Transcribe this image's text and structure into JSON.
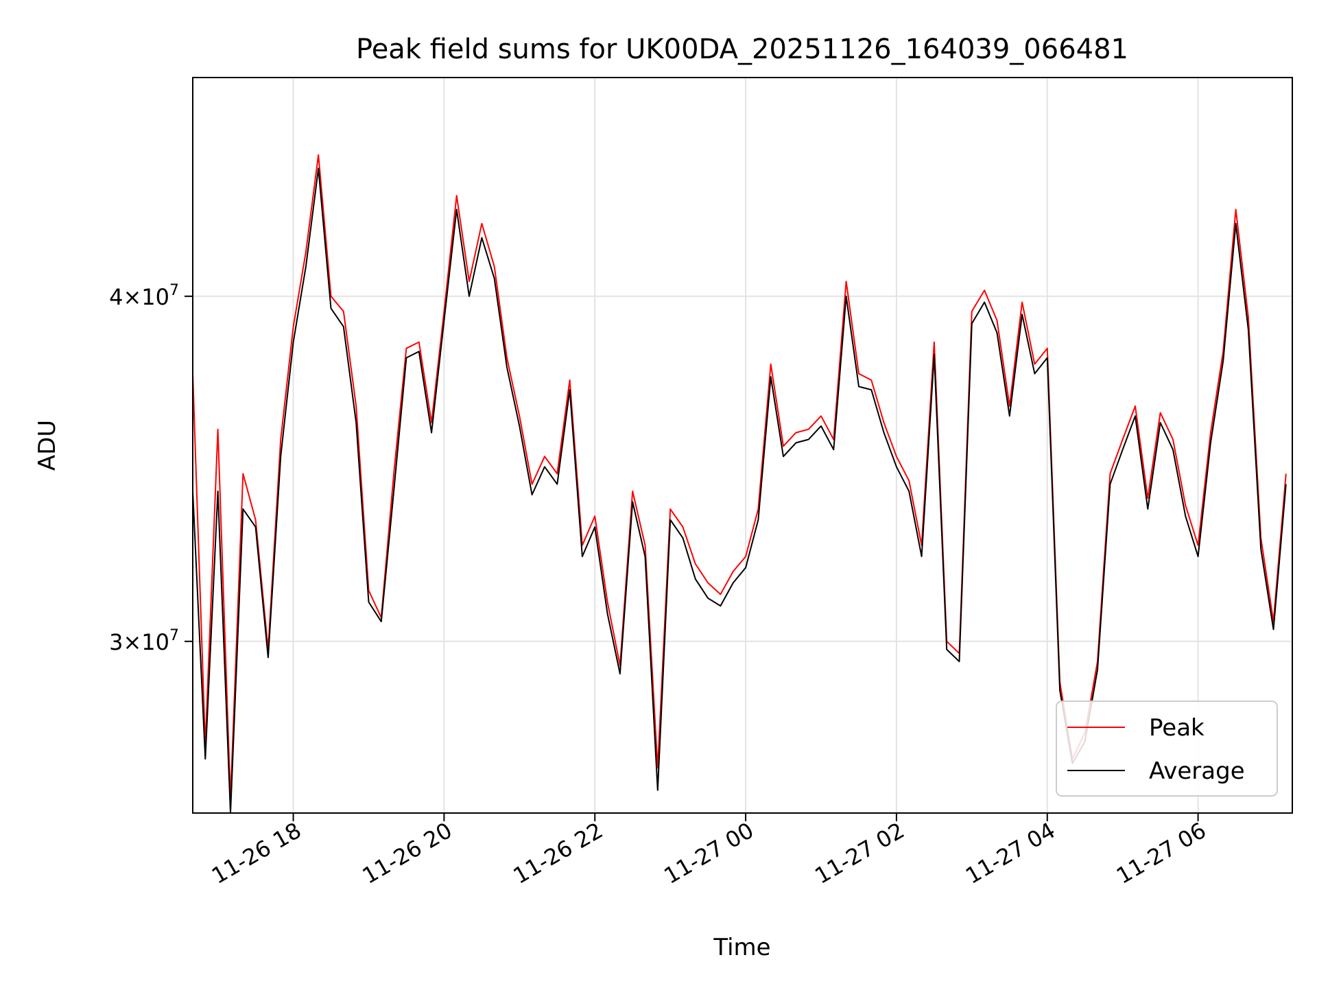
{
  "chart_data": {
    "type": "line",
    "title": "Peak field sums for UK00DA_20251126_164039_066481",
    "xlabel": "Time",
    "ylabel": "ADU",
    "yscale": "log",
    "xlim": [
      "2025-11-26 16:40",
      "2025-11-27 07:15"
    ],
    "ylim": [
      26000000,
      48000000
    ],
    "grid": true,
    "legend_position": "lower-right",
    "x_ticks": [
      {
        "value": "2025-11-26 18:00",
        "label": "11-26 18"
      },
      {
        "value": "2025-11-26 20:00",
        "label": "11-26 20"
      },
      {
        "value": "2025-11-26 22:00",
        "label": "11-26 22"
      },
      {
        "value": "2025-11-27 00:00",
        "label": "11-27 00"
      },
      {
        "value": "2025-11-27 02:00",
        "label": "11-27 02"
      },
      {
        "value": "2025-11-27 04:00",
        "label": "11-27 04"
      },
      {
        "value": "2025-11-27 06:00",
        "label": "11-27 06"
      }
    ],
    "y_ticks": [
      {
        "value": 30000000,
        "mantissa": "3",
        "exponent": "7"
      },
      {
        "value": 40000000,
        "mantissa": "4",
        "exponent": "7"
      }
    ],
    "tick_times_label": "×10",
    "series": [
      {
        "name": "Peak",
        "color": "#ff0000",
        "x": [
          "2025-11-26 16:40",
          "2025-11-26 16:50",
          "2025-11-26 17:00",
          "2025-11-26 17:10",
          "2025-11-26 17:20",
          "2025-11-26 17:30",
          "2025-11-26 17:40",
          "2025-11-26 17:50",
          "2025-11-26 18:00",
          "2025-11-26 18:10",
          "2025-11-26 18:20",
          "2025-11-26 18:30",
          "2025-11-26 18:40",
          "2025-11-26 18:50",
          "2025-11-26 19:00",
          "2025-11-26 19:10",
          "2025-11-26 19:20",
          "2025-11-26 19:30",
          "2025-11-26 19:40",
          "2025-11-26 19:50",
          "2025-11-26 20:00",
          "2025-11-26 20:10",
          "2025-11-26 20:20",
          "2025-11-26 20:30",
          "2025-11-26 20:40",
          "2025-11-26 20:50",
          "2025-11-26 21:00",
          "2025-11-26 21:10",
          "2025-11-26 21:20",
          "2025-11-26 21:30",
          "2025-11-26 21:40",
          "2025-11-26 21:50",
          "2025-11-26 22:00",
          "2025-11-26 22:10",
          "2025-11-26 22:20",
          "2025-11-26 22:30",
          "2025-11-26 22:40",
          "2025-11-26 22:50",
          "2025-11-26 23:00",
          "2025-11-26 23:10",
          "2025-11-26 23:20",
          "2025-11-26 23:30",
          "2025-11-26 23:40",
          "2025-11-26 23:50",
          "2025-11-27 00:00",
          "2025-11-27 00:10",
          "2025-11-27 00:20",
          "2025-11-27 00:30",
          "2025-11-27 00:40",
          "2025-11-27 00:50",
          "2025-11-27 01:00",
          "2025-11-27 01:10",
          "2025-11-27 01:20",
          "2025-11-27 01:30",
          "2025-11-27 01:40",
          "2025-11-27 01:50",
          "2025-11-27 02:00",
          "2025-11-27 02:10",
          "2025-11-27 02:20",
          "2025-11-27 02:30",
          "2025-11-27 02:40",
          "2025-11-27 02:50",
          "2025-11-27 03:00",
          "2025-11-27 03:10",
          "2025-11-27 03:20",
          "2025-11-27 03:30",
          "2025-11-27 03:40",
          "2025-11-27 03:50",
          "2025-11-27 04:00",
          "2025-11-27 04:10",
          "2025-11-27 04:20",
          "2025-11-27 04:30",
          "2025-11-27 04:40",
          "2025-11-27 04:50",
          "2025-11-27 05:00",
          "2025-11-27 05:10",
          "2025-11-27 05:20",
          "2025-11-27 05:30",
          "2025-11-27 05:40",
          "2025-11-27 05:50",
          "2025-11-27 06:00",
          "2025-11-27 06:10",
          "2025-11-27 06:20",
          "2025-11-27 06:30",
          "2025-11-27 06:40",
          "2025-11-27 06:50",
          "2025-11-27 07:00",
          "2025-11-27 07:10"
        ],
        "y": [
          37500000,
          27500000,
          35800000,
          26300000,
          34500000,
          33200000,
          29800000,
          35500000,
          39000000,
          41500000,
          45000000,
          40000000,
          39500000,
          36500000,
          31300000,
          30600000,
          34500000,
          38300000,
          38500000,
          36000000,
          39500000,
          43500000,
          40500000,
          42500000,
          41000000,
          38000000,
          36200000,
          34200000,
          35000000,
          34500000,
          37300000,
          32500000,
          33300000,
          31000000,
          29400000,
          34000000,
          32500000,
          27000000,
          33500000,
          33000000,
          32000000,
          31500000,
          31200000,
          31800000,
          32200000,
          33500000,
          37800000,
          35300000,
          35700000,
          35800000,
          36200000,
          35500000,
          40500000,
          37500000,
          37300000,
          36000000,
          35000000,
          34300000,
          32500000,
          38500000,
          30000000,
          29700000,
          39500000,
          40200000,
          39200000,
          36500000,
          39800000,
          37800000,
          38300000,
          29000000,
          27200000,
          27800000,
          29500000,
          34500000,
          35500000,
          36500000,
          33800000,
          36300000,
          35500000,
          33600000,
          32500000,
          35700000,
          38200000,
          43000000,
          39300000,
          32700000,
          30500000,
          34500000
        ]
      },
      {
        "name": "Average",
        "color": "#000000",
        "x": [
          "2025-11-26 16:40",
          "2025-11-26 16:50",
          "2025-11-26 17:00",
          "2025-11-26 17:10",
          "2025-11-26 17:20",
          "2025-11-26 17:30",
          "2025-11-26 17:40",
          "2025-11-26 17:50",
          "2025-11-26 18:00",
          "2025-11-26 18:10",
          "2025-11-26 18:20",
          "2025-11-26 18:30",
          "2025-11-26 18:40",
          "2025-11-26 18:50",
          "2025-11-26 19:00",
          "2025-11-26 19:10",
          "2025-11-26 19:20",
          "2025-11-26 19:30",
          "2025-11-26 19:40",
          "2025-11-26 19:50",
          "2025-11-26 20:00",
          "2025-11-26 20:10",
          "2025-11-26 20:20",
          "2025-11-26 20:30",
          "2025-11-26 20:40",
          "2025-11-26 20:50",
          "2025-11-26 21:00",
          "2025-11-26 21:10",
          "2025-11-26 21:20",
          "2025-11-26 21:30",
          "2025-11-26 21:40",
          "2025-11-26 21:50",
          "2025-11-26 22:00",
          "2025-11-26 22:10",
          "2025-11-26 22:20",
          "2025-11-26 22:30",
          "2025-11-26 22:40",
          "2025-11-26 22:50",
          "2025-11-26 23:00",
          "2025-11-26 23:10",
          "2025-11-26 23:20",
          "2025-11-26 23:30",
          "2025-11-26 23:40",
          "2025-11-26 23:50",
          "2025-11-27 00:00",
          "2025-11-27 00:10",
          "2025-11-27 00:20",
          "2025-11-27 00:30",
          "2025-11-27 00:40",
          "2025-11-27 00:50",
          "2025-11-27 01:00",
          "2025-11-27 01:10",
          "2025-11-27 01:20",
          "2025-11-27 01:30",
          "2025-11-27 01:40",
          "2025-11-27 01:50",
          "2025-11-27 02:00",
          "2025-11-27 02:10",
          "2025-11-27 02:20",
          "2025-11-27 02:30",
          "2025-11-27 02:40",
          "2025-11-27 02:50",
          "2025-11-27 03:00",
          "2025-11-27 03:10",
          "2025-11-27 03:20",
          "2025-11-27 03:30",
          "2025-11-27 03:40",
          "2025-11-27 03:50",
          "2025-11-27 04:00",
          "2025-11-27 04:10",
          "2025-11-27 04:20",
          "2025-11-27 04:30",
          "2025-11-27 04:40",
          "2025-11-27 04:50",
          "2025-11-27 05:00",
          "2025-11-27 05:10",
          "2025-11-27 05:20",
          "2025-11-27 05:30",
          "2025-11-27 05:40",
          "2025-11-27 05:50",
          "2025-11-27 06:00",
          "2025-11-27 06:10",
          "2025-11-27 06:20",
          "2025-11-27 06:30",
          "2025-11-27 06:40",
          "2025-11-27 06:50",
          "2025-11-27 07:00",
          "2025-11-27 07:10"
        ],
        "y": [
          34000000,
          27200000,
          34000000,
          26000000,
          33500000,
          33000000,
          29600000,
          35000000,
          38500000,
          41000000,
          44500000,
          39600000,
          39000000,
          36000000,
          31000000,
          30500000,
          34000000,
          38000000,
          38200000,
          35700000,
          39200000,
          43000000,
          40000000,
          42000000,
          40600000,
          37700000,
          35900000,
          33900000,
          34700000,
          34200000,
          37000000,
          32200000,
          33000000,
          30700000,
          29200000,
          33700000,
          32200000,
          26500000,
          33200000,
          32700000,
          31600000,
          31100000,
          30900000,
          31500000,
          31900000,
          33200000,
          37400000,
          35000000,
          35400000,
          35500000,
          35900000,
          35200000,
          40000000,
          37100000,
          37000000,
          35700000,
          34700000,
          34000000,
          32200000,
          38100000,
          29800000,
          29500000,
          39100000,
          39800000,
          38800000,
          36200000,
          39400000,
          37500000,
          38000000,
          28800000,
          27100000,
          27600000,
          29300000,
          34200000,
          35200000,
          36200000,
          33500000,
          36000000,
          35200000,
          33300000,
          32200000,
          35400000,
          37900000,
          42500000,
          38900000,
          32400000,
          30300000,
          34200000
        ]
      }
    ]
  }
}
